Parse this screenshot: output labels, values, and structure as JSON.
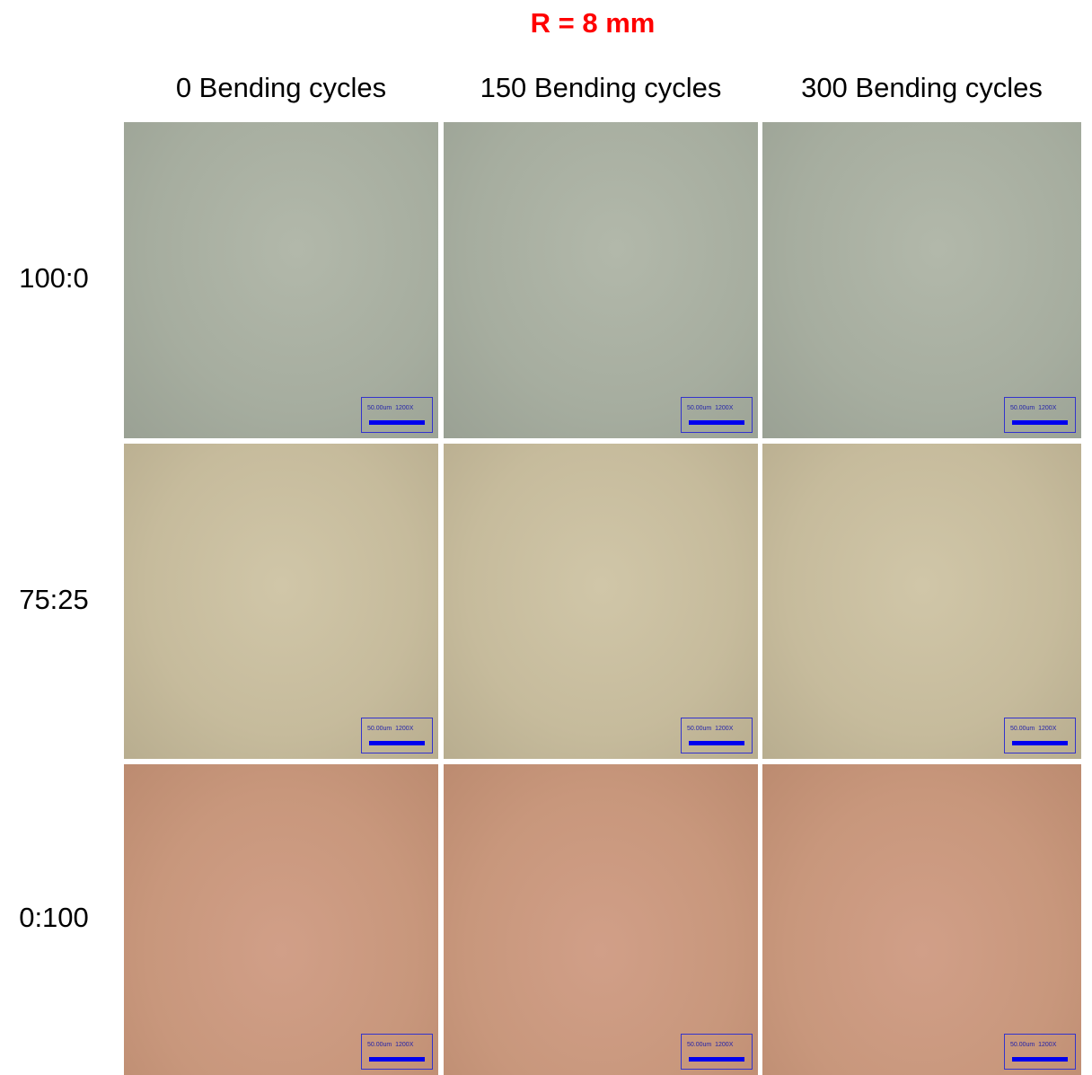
{
  "title": "R = 8 mm",
  "columns": [
    "0 Bending cycles",
    "150 Bending cycles",
    "300 Bending cycles"
  ],
  "rows": [
    "100:0",
    "75:25",
    "0:100"
  ],
  "scale_label": "50.00um  1200X"
}
